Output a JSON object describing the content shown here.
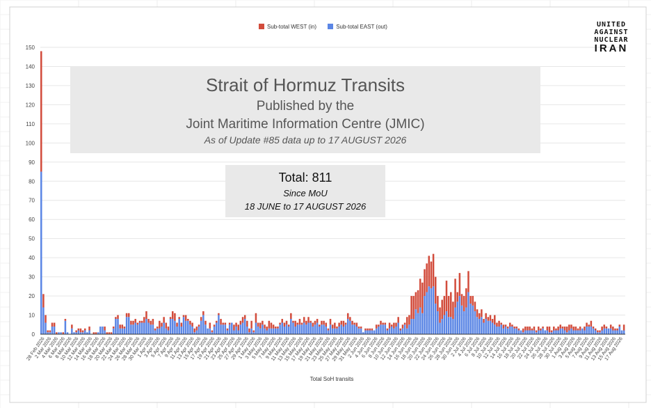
{
  "logo": {
    "line1": "UNITED",
    "line2": "AGAINST",
    "line3": "NUCLEAR",
    "line4": "IRAN"
  },
  "overlay": {
    "title": "Strait of Hormuz Transits",
    "subtitle1": "Published by the",
    "subtitle2": "Joint Maritime Information Centre (JMIC)",
    "asof": "As of Update #85 data up to 17 AUGUST 2026"
  },
  "total_box": {
    "total": "Total: 811",
    "since": "Since MoU",
    "range": "18 JUNE to 17 AUGUST 2026"
  },
  "colors": {
    "west": "#d24c3c",
    "east": "#5b86e5",
    "grid": "#e6e6e6"
  },
  "chart_data": {
    "type": "bar",
    "stacked": true,
    "title": "",
    "xlabel": "Total SoH transits",
    "ylabel": "",
    "ylim": [
      0,
      150
    ],
    "yticks": [
      0,
      10,
      20,
      30,
      40,
      50,
      60,
      70,
      80,
      90,
      100,
      110,
      120,
      130,
      140,
      150
    ],
    "grid": true,
    "legend_position": "top-center",
    "xtick_labels": [
      "28 Feb 2026",
      "2 Mar 2026",
      "4 Mar 2026",
      "6 Mar 2026",
      "8 Mar 2026",
      "10 Mar 2026",
      "12 Mar 2026",
      "14 Mar 2026",
      "16 Mar 2026",
      "18 Mar 2026",
      "20 Mar 2026",
      "22 Mar 2026",
      "24 Mar 2026",
      "26 Mar 2026",
      "28 Mar 2026",
      "30 Mar 2026",
      "1 Apr 2026",
      "3 Apr 2026",
      "5 Apr 2026",
      "7 Apr 2026",
      "9 Apr 2026",
      "11 Apr 2026",
      "13 Apr 2026",
      "15 Apr 2026",
      "17 Apr 2026",
      "19 Apr 2026",
      "21 Apr 2026",
      "23 Apr 2026",
      "25 Apr 2026",
      "27 Apr 2026",
      "29 Apr 2026",
      "1 May 2026",
      "3 May 2026",
      "5 May 2026",
      "7 May 2026",
      "9 May 2026",
      "11 May 2026",
      "13 May 2026",
      "15 May 2026",
      "17 May 2026",
      "19 May 2026",
      "21 May 2026",
      "23 May 2026",
      "25 May 2026",
      "27 May 2026",
      "29 May 2026",
      "31 May 2026",
      "2 Jun 2026",
      "4 Jun 2026",
      "6 Jun 2026",
      "8 Jun 2026",
      "10 Jun 2026",
      "12 Jun 2026",
      "14 Jun 2026",
      "16 Jun 2026",
      "18 Jun 2026",
      "20 Jun 2026",
      "22 Jun 2026",
      "24 Jun 2026",
      "26 Jun 2026",
      "28 Jun 2026",
      "30 Jun 2026",
      "2 Jul 2026",
      "4 Jul 2026",
      "6 Jul 2026",
      "8 Jul 2026",
      "10 Jul 2026",
      "12 Jul 2026",
      "14 Jul 2026",
      "16 Jul 2026",
      "18 Jul 2026",
      "20 Jul 2026",
      "22 Jul 2026",
      "24 Jul 2026",
      "26 Jul 2026",
      "28 Jul 2026",
      "30 Jul 2026",
      "1 Aug 2026",
      "3 Aug 2026",
      "5 Aug 2026",
      "7 Aug 2026",
      "9 Aug 2026",
      "11 Aug 2026",
      "13 Aug 2026",
      "15 Aug 2026",
      "17 Aug 2026"
    ],
    "series": [
      {
        "name": "Sub-total WEST (in)",
        "values": [
          63,
          7,
          4,
          1,
          1,
          2,
          2,
          1,
          0,
          0,
          1,
          1,
          0,
          0,
          2,
          0,
          1,
          1,
          2,
          1,
          1,
          0,
          2,
          0,
          1,
          1,
          0,
          0,
          0,
          2,
          1,
          1,
          1,
          1,
          1,
          2,
          2,
          2,
          1,
          2,
          2,
          2,
          2,
          2,
          1,
          1,
          1,
          3,
          4,
          2,
          2,
          3,
          1,
          1,
          4,
          2,
          3,
          3,
          2,
          1,
          4,
          4,
          2,
          1,
          2,
          1,
          3,
          1,
          2,
          2,
          2,
          2,
          1,
          2,
          2,
          2,
          0,
          3,
          1,
          1,
          1,
          1,
          3,
          1,
          1,
          1,
          1,
          0,
          3,
          2,
          3,
          2,
          3,
          2,
          3,
          2,
          4,
          1,
          5,
          2,
          3,
          2,
          2,
          2,
          4,
          3,
          2,
          1,
          1,
          1,
          2,
          2,
          2,
          1,
          3,
          1,
          3,
          1,
          3,
          1,
          3,
          2,
          3,
          1,
          2,
          2,
          2,
          1,
          2,
          2,
          2,
          1,
          3,
          2,
          3,
          1,
          2,
          2,
          3,
          1,
          3,
          2,
          2,
          1,
          2,
          1,
          1,
          0,
          1,
          1,
          1,
          1,
          0,
          2,
          1,
          2,
          1,
          1,
          1,
          3,
          1,
          3,
          2,
          3,
          1,
          2,
          1,
          6,
          5,
          12,
          12,
          9,
          12,
          15,
          16,
          14,
          15,
          16,
          14,
          17,
          14,
          8,
          8,
          10,
          10,
          16,
          11,
          13,
          9,
          15,
          5,
          12,
          6,
          8,
          10,
          11,
          4,
          5,
          5,
          4,
          3,
          4,
          2,
          3,
          2,
          3,
          2,
          5,
          2,
          3,
          1,
          2,
          1,
          1,
          2,
          1,
          1,
          1,
          1,
          0,
          2,
          2,
          2,
          2,
          1,
          2,
          1,
          2,
          1,
          1,
          0,
          2,
          3,
          1,
          2,
          1,
          2,
          2,
          1,
          2,
          3,
          3,
          2,
          2,
          2,
          1,
          2,
          0,
          2,
          2,
          1,
          3,
          1,
          1,
          1,
          1,
          2,
          2,
          1,
          0,
          2,
          2,
          1,
          1,
          1,
          0,
          3
        ]
      },
      {
        "name": "Sub-total EAST (out)",
        "values": [
          85,
          14,
          6,
          1,
          1,
          4,
          4,
          0,
          1,
          1,
          0,
          7,
          1,
          0,
          3,
          1,
          1,
          2,
          1,
          1,
          2,
          1,
          2,
          0,
          0,
          0,
          1,
          4,
          4,
          2,
          0,
          0,
          0,
          3,
          8,
          8,
          3,
          3,
          3,
          9,
          9,
          5,
          5,
          6,
          5,
          6,
          6,
          6,
          8,
          6,
          5,
          5,
          2,
          3,
          3,
          4,
          6,
          3,
          2,
          8,
          8,
          7,
          4,
          8,
          4,
          9,
          7,
          7,
          5,
          4,
          1,
          2,
          4,
          7,
          10,
          5,
          3,
          3,
          1,
          4,
          6,
          10,
          5,
          5,
          5,
          2,
          5,
          6,
          2,
          4,
          2,
          5,
          6,
          8,
          4,
          1,
          3,
          1,
          6,
          4,
          3,
          5,
          3,
          2,
          3,
          3,
          3,
          3,
          3,
          5,
          6,
          4,
          5,
          4,
          8,
          6,
          4,
          5,
          5,
          5,
          6,
          5,
          6,
          6,
          4,
          5,
          6,
          4,
          5,
          5,
          4,
          2,
          5,
          3,
          3,
          3,
          4,
          5,
          4,
          5,
          8,
          7,
          5,
          5,
          4,
          3,
          3,
          1,
          2,
          2,
          2,
          2,
          2,
          3,
          4,
          5,
          5,
          5,
          2,
          3,
          4,
          3,
          4,
          6,
          2,
          3,
          5,
          3,
          5,
          8,
          8,
          13,
          11,
          14,
          11,
          20,
          22,
          25,
          24,
          25,
          16,
          12,
          6,
          8,
          10,
          12,
          9,
          9,
          8,
          14,
          17,
          20,
          15,
          12,
          14,
          22,
          16,
          15,
          12,
          9,
          8,
          9,
          6,
          8,
          7,
          7,
          6,
          5,
          4,
          4,
          5,
          3,
          4,
          3,
          4,
          4,
          3,
          3,
          2,
          2,
          1,
          2,
          2,
          2,
          2,
          2,
          1,
          2,
          2,
          3,
          2,
          2,
          1,
          1,
          2,
          2,
          2,
          3,
          3,
          2,
          1,
          2,
          3,
          2,
          2,
          2,
          2,
          3,
          2,
          4,
          4,
          4,
          3,
          2,
          1,
          1,
          2,
          3,
          3,
          3,
          3,
          2,
          2,
          2,
          4,
          2,
          2,
          2,
          0,
          0
        ]
      }
    ]
  }
}
